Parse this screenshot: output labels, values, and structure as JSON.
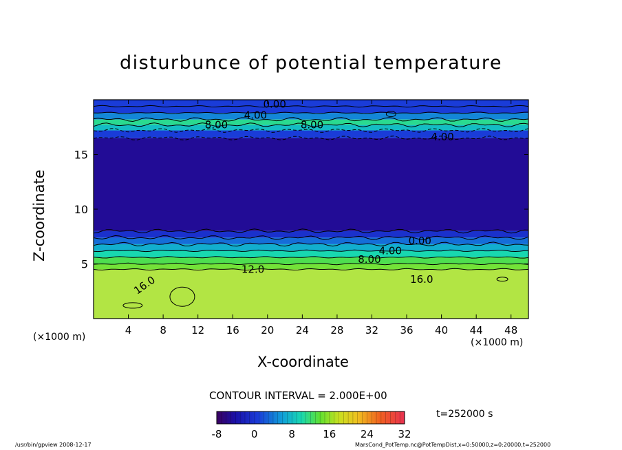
{
  "title": "disturbunce of potential temperature",
  "x_unit_left": "(×1000 m)",
  "x_unit_right": "(×1000 m)",
  "contour_interval": "CONTOUR INTERVAL = 2.000E+00",
  "time_label": "t=252000 s",
  "footer_left": "/usr/bin/gpview   2008-12-17",
  "footer_right": "MarsCond_PotTemp.nc@PotTempDist,x=0:50000,z=0:20000,t=252000",
  "chart_data": {
    "type": "heatmap",
    "title": "disturbunce of potential temperature",
    "xlabel": "X-coordinate",
    "ylabel": "Z-coordinate",
    "xlim": [
      0,
      50
    ],
    "ylim": [
      0,
      20
    ],
    "x_ticks": [
      "4",
      "8",
      "12",
      "16",
      "20",
      "24",
      "28",
      "32",
      "36",
      "40",
      "44",
      "48"
    ],
    "y_ticks": [
      "5",
      "10",
      "15"
    ],
    "colorbar": {
      "range": [
        -8,
        32
      ],
      "ticks": [
        "-8",
        "0",
        "8",
        "16",
        "24",
        "32"
      ]
    },
    "contour_labels": [
      "0.00",
      "4.00",
      "8.00",
      "8.00",
      "4.00",
      "0.00",
      "4.00",
      "8.00",
      "12.0",
      "16.0",
      "16.0"
    ],
    "bands": [
      {
        "z0": 0,
        "z1": 4.5,
        "value": 17
      },
      {
        "z0": 4.5,
        "z1": 5,
        "value": 13
      },
      {
        "z0": 5,
        "z1": 5.6,
        "value": 11
      },
      {
        "z0": 5.6,
        "z1": 6.2,
        "value": 8
      },
      {
        "z0": 6.2,
        "z1": 6.8,
        "value": 5
      },
      {
        "z0": 6.8,
        "z1": 7.4,
        "value": 2
      },
      {
        "z0": 7.4,
        "z1": 8.0,
        "value": -1
      },
      {
        "z0": 8.0,
        "z1": 16.5,
        "value": -5
      },
      {
        "z0": 16.5,
        "z1": 17.2,
        "value": 0
      },
      {
        "z0": 17.2,
        "z1": 17.7,
        "value": 6
      },
      {
        "z0": 17.7,
        "z1": 18.2,
        "value": 9
      },
      {
        "z0": 18.2,
        "z1": 18.8,
        "value": 3
      },
      {
        "z0": 18.8,
        "z1": 20,
        "value": 0
      }
    ]
  }
}
